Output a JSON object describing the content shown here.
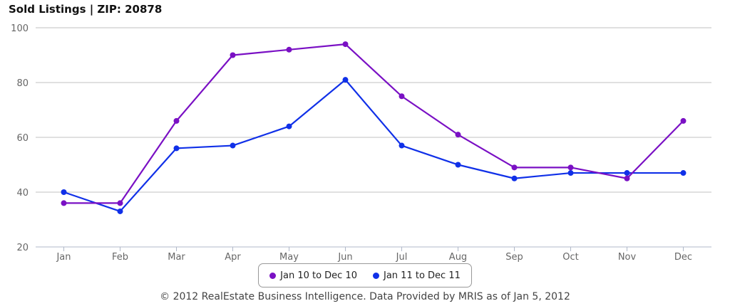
{
  "colors": {
    "series_2010": "#7a10c4",
    "series_2011": "#1030e8",
    "grid": "#c0c0c0",
    "axis": "#b0b8c8"
  },
  "footer": "© 2012 RealEstate Business Intelligence. Data Provided by MRIS as of Jan 5, 2012",
  "chart_data": {
    "type": "line",
    "title": "Sold Listings | ZIP: 20878",
    "xlabel": "",
    "ylabel": "",
    "categories": [
      "Jan",
      "Feb",
      "Mar",
      "Apr",
      "May",
      "Jun",
      "Jul",
      "Aug",
      "Sep",
      "Oct",
      "Nov",
      "Dec"
    ],
    "ylim": [
      20,
      100
    ],
    "yticks": [
      20,
      40,
      60,
      80,
      100
    ],
    "grid": true,
    "legend": "bottom-center",
    "series": [
      {
        "name": "Jan 10 to Dec 10",
        "values": [
          36,
          36,
          66,
          90,
          92,
          94,
          75,
          61,
          49,
          49,
          45,
          66
        ]
      },
      {
        "name": "Jan 11 to Dec 11",
        "values": [
          40,
          33,
          56,
          57,
          64,
          81,
          57,
          50,
          45,
          47,
          47,
          47
        ]
      }
    ]
  }
}
